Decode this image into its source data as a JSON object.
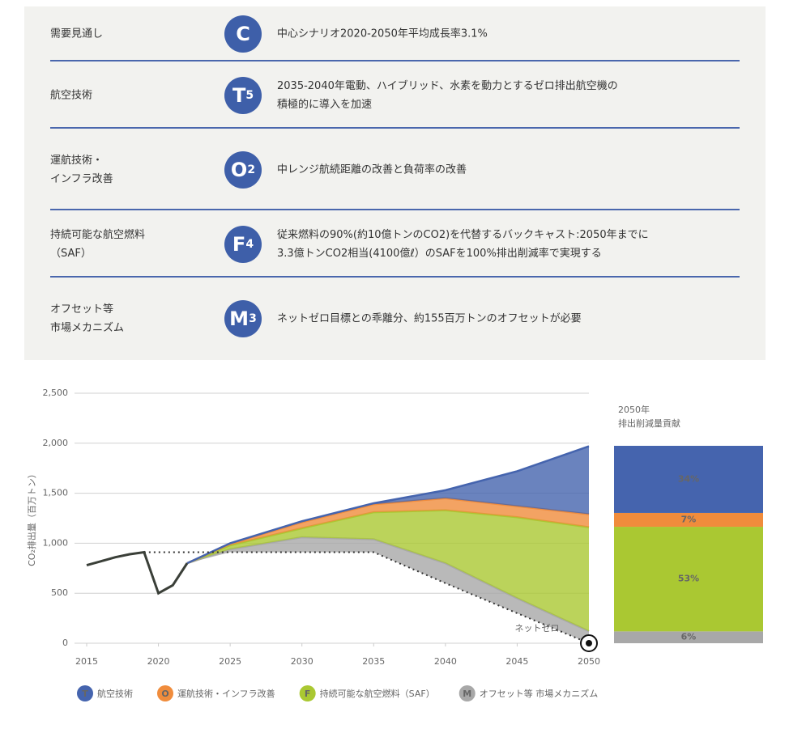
{
  "table": {
    "rows": [
      {
        "label": "需要見通し",
        "icon": {
          "letter": "C",
          "sub": ""
        },
        "text": "中心シナリオ2020-2050年平均成長率3.1%"
      },
      {
        "label": "航空技術",
        "icon": {
          "letter": "T",
          "sub": "5"
        },
        "text": "2035-2040年電動、ハイブリッド、水素を動力とするゼロ排出航空機の\n積極的に導入を加速"
      },
      {
        "label": "運航技術・\nインフラ改善",
        "icon": {
          "letter": "O",
          "sub": "2"
        },
        "text": "中レンジ航続距離の改善と負荷率の改善"
      },
      {
        "label": "持続可能な航空燃料\n（SAF）",
        "icon": {
          "letter": "F",
          "sub": "4"
        },
        "text": "従来燃料の90%(約10億トンのCO2)を代替するバックキャスト:2050年までに\n3.3億トンCO2相当(4100億ℓ）のSAFを100%排出削減率で実現する"
      },
      {
        "label": "オフセット等\n市場メカニズム",
        "icon": {
          "letter": "M",
          "sub": "3"
        },
        "text": "ネットゼロ目標との乖離分、約155百万トンのオフセットが必要"
      }
    ]
  },
  "chart_data": {
    "type": "stacked_area",
    "ylabel": "CO₂排出量（百万トン）",
    "xlim": [
      2015,
      2050
    ],
    "xticks": [
      2015,
      2020,
      2025,
      2030,
      2035,
      2040,
      2045,
      2050
    ],
    "ylim": [
      0,
      2500
    ],
    "yticks": [
      0,
      500,
      {
        "value": 1000,
        "label": "1,000"
      },
      {
        "value": 1500,
        "label": "1,500"
      },
      {
        "value": 2000,
        "label": "2,000"
      },
      {
        "value": 2500,
        "label": "2,500"
      }
    ],
    "grid": true,
    "history": {
      "color": "#3a3f38",
      "x": [
        2015,
        2016,
        2017,
        2018,
        2019,
        2020,
        2021,
        2022
      ],
      "values": [
        780,
        820,
        860,
        890,
        910,
        500,
        580,
        800
      ]
    },
    "net_zero": {
      "label": "ネットゼロ",
      "x": [
        2019,
        2035,
        2040,
        2045,
        2050
      ],
      "values": [
        910,
        910,
        600,
        300,
        0
      ]
    },
    "x": [
      2022,
      2025,
      2030,
      2035,
      2040,
      2045,
      2050
    ],
    "stack_base": [
      800,
      910,
      910,
      910,
      600,
      300,
      0
    ],
    "series": [
      {
        "name": "オフセット等 市場メカニズム",
        "symbol": "M",
        "color": "#a8a8a8",
        "values": [
          0,
          30,
          150,
          130,
          200,
          150,
          120
        ]
      },
      {
        "name": "持続可能な航空燃料（SAF）",
        "symbol": "F",
        "color": "#aac832",
        "values": [
          0,
          40,
          90,
          270,
          530,
          810,
          1040
        ]
      },
      {
        "name": "運航技術・インフラ改善",
        "symbol": "O",
        "color": "#f08c3c",
        "values": [
          0,
          15,
          60,
          80,
          120,
          110,
          130
        ]
      },
      {
        "name": "航空技術",
        "symbol": "T",
        "color": "#4564ae",
        "values": [
          0,
          5,
          10,
          10,
          80,
          350,
          680
        ]
      }
    ],
    "legend_order": [
      3,
      2,
      1,
      0
    ],
    "bar": {
      "title": "2050年\n排出削減量貢献",
      "values": [
        6,
        53,
        7,
        34
      ],
      "value_labels": [
        "6%",
        "53%",
        "7%",
        "34%"
      ]
    }
  }
}
